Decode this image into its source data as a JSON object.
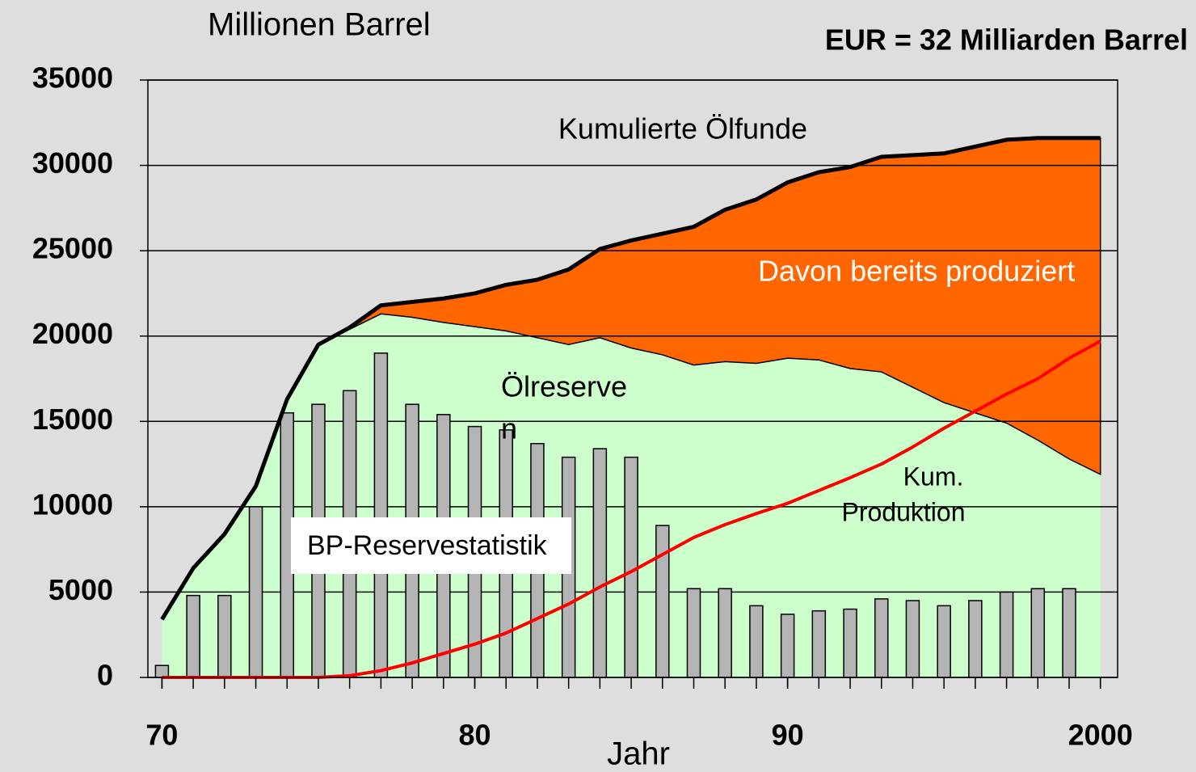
{
  "chart_data": {
    "type": "area",
    "title": "EUR = 32 Milliarden Barrel",
    "y_label": "Millionen Barrel",
    "x_label": "Jahr",
    "x": [
      1970,
      1971,
      1972,
      1973,
      1974,
      1975,
      1976,
      1977,
      1978,
      1979,
      1980,
      1981,
      1982,
      1983,
      1984,
      1985,
      1986,
      1987,
      1988,
      1989,
      1990,
      1991,
      1992,
      1993,
      1994,
      1995,
      1996,
      1997,
      1998,
      1999,
      2000
    ],
    "xlim": [
      1969.55,
      2000.55
    ],
    "xticks": [
      {
        "value": 1970,
        "label": "70"
      },
      {
        "value": 1980,
        "label": "80"
      },
      {
        "value": 1990,
        "label": "90"
      },
      2000
    ],
    "ylim": [
      0,
      35000
    ],
    "yticks": [
      0,
      5000,
      10000,
      15000,
      20000,
      25000,
      30000,
      35000
    ],
    "grid": true,
    "series": [
      {
        "name": "Kumulierte Ölfunde",
        "color": "#000000",
        "values": [
          3400,
          6400,
          8400,
          11200,
          16300,
          19500,
          20500,
          21800,
          22000,
          22200,
          22500,
          23000,
          23300,
          23900,
          25100,
          25600,
          26000,
          26400,
          27400,
          28000,
          29000,
          29600,
          29900,
          30500,
          30600,
          30700,
          31100,
          31500,
          31600,
          31600,
          31600
        ]
      },
      {
        "name": "Davon bereits produziert",
        "color": "#ff6600"
      },
      {
        "name": [
          "Ölreserve",
          "n"
        ],
        "color": "#ccffcc",
        "values": [
          3400,
          6400,
          8400,
          11200,
          16300,
          19500,
          20400,
          21300,
          21100,
          20800,
          20550,
          20300,
          19900,
          19500,
          19900,
          19300,
          18900,
          18300,
          18500,
          18400,
          18700,
          18600,
          18100,
          17900,
          17000,
          16100,
          15500,
          14900,
          13900,
          12800,
          11900
        ]
      },
      {
        "name": [
          "Kum.",
          "Produktion"
        ],
        "color": "#ff0000",
        "values": [
          0,
          0,
          0,
          0,
          0,
          0,
          100,
          400,
          850,
          1400,
          1950,
          2600,
          3450,
          4300,
          5300,
          6200,
          7200,
          8200,
          8950,
          9600,
          10200,
          10950,
          11700,
          12500,
          13500,
          14600,
          15600,
          16600,
          17500,
          18700,
          19700
        ]
      },
      {
        "name": "BP-Reservestatistik",
        "color": "#b4b4b4",
        "values": [
          700,
          4800,
          4800,
          10000,
          15500,
          16000,
          16800,
          19000,
          16000,
          15400,
          14700,
          14500,
          13700,
          12900,
          13400,
          12900,
          8900,
          5200,
          5200,
          4200,
          3700,
          3900,
          4000,
          4600,
          4500,
          4200,
          4500,
          5000,
          5200,
          5200,
          null
        ]
      }
    ]
  }
}
